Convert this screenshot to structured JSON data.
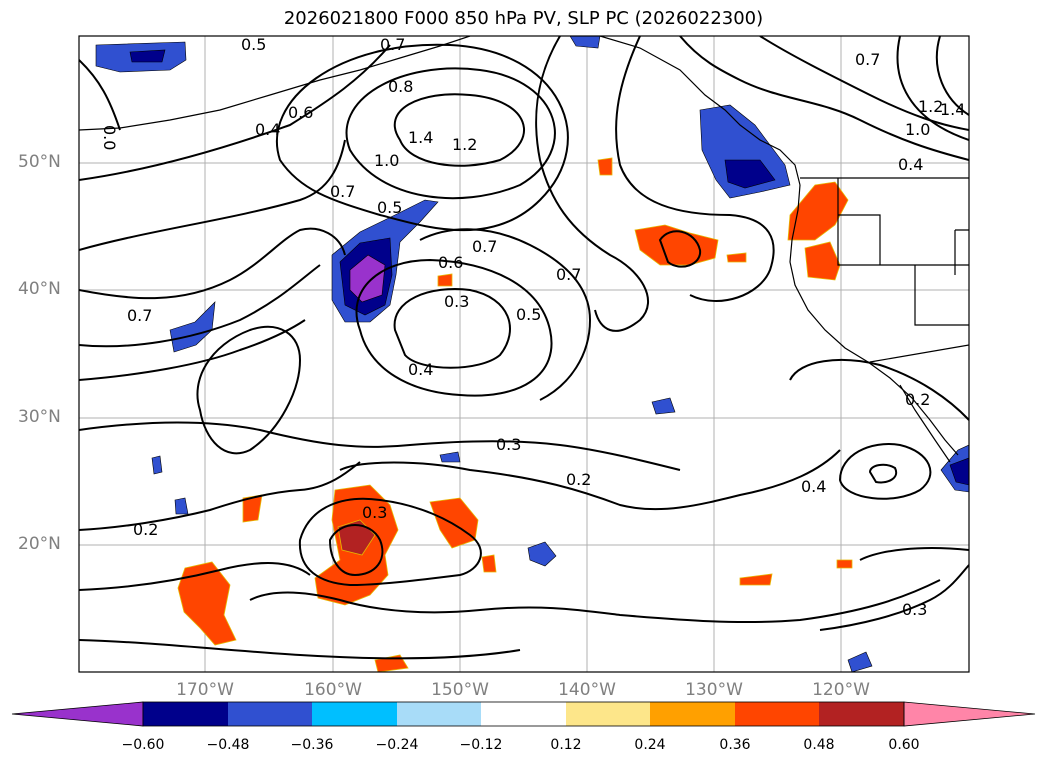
{
  "title": "2026021800 F000 850 hPa PV, SLP PC (2026022300)",
  "lat_labels": [
    "50°N",
    "40°N",
    "30°N",
    "20°N"
  ],
  "lon_labels": [
    "170°W",
    "160°W",
    "150°W",
    "140°W",
    "130°W",
    "120°W"
  ],
  "colorbar": {
    "tick_labels": [
      "−0.60",
      "−0.48",
      "−0.36",
      "−0.24",
      "−0.12",
      "0.12",
      "0.24",
      "0.36",
      "0.48",
      "0.60"
    ],
    "colors": [
      "#9932cc",
      "#00008b",
      "#3050d0",
      "#00bfff",
      "#a8dcf8",
      "#ffffff",
      "#fde68a",
      "#ffa000",
      "#ff4500",
      "#b22222",
      "#ff85a8"
    ]
  },
  "contour_labels": [
    "0.5",
    "0.7",
    "0.8",
    "0.6",
    "0.4",
    "0.0",
    "1.4",
    "1.2",
    "1.0",
    "0.7",
    "0.5",
    "0.6",
    "0.7",
    "0.7",
    "0.3",
    "0.5",
    "0.4",
    "0.7",
    "0.3",
    "0.2",
    "0.2",
    "0.4",
    "0.3",
    "0.7",
    "1.2",
    "1.4",
    "1.0",
    "0.4",
    "0.2",
    "0.3"
  ]
}
